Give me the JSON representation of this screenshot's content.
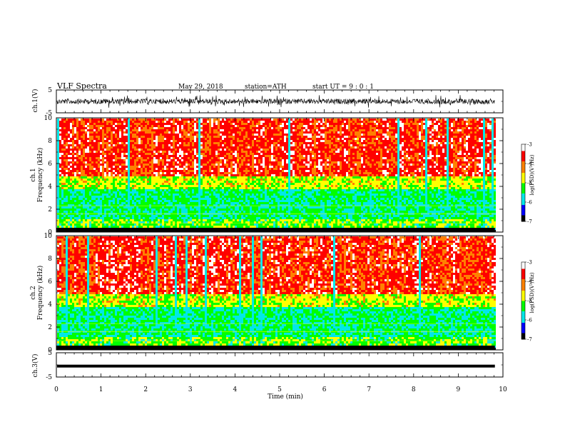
{
  "header": {
    "title": "VLF  Spectra",
    "date": "May 29, 2018",
    "station": "station=ATH",
    "start": "start  UT  =    9 : 0  : 1"
  },
  "chart_data": [
    {
      "type": "line",
      "panel": "ch1-waveform",
      "ylabel": "ch.1(V)",
      "ylim": [
        -5,
        5
      ],
      "yticks": [
        "5",
        "-5"
      ],
      "xlim": [
        0,
        10
      ]
    },
    {
      "type": "heatmap",
      "panel": "ch1-spectrogram",
      "ylabel_line1": "ch.1",
      "ylabel_line2": "Frequency (kHz)",
      "ylim": [
        0,
        10
      ],
      "yticks": [
        "10",
        "8",
        "6",
        "4",
        "2",
        "0"
      ],
      "xlim": [
        0,
        10
      ],
      "colorbar": {
        "label": "log(PSD)(V²/Hz)",
        "range": [
          -7,
          -3
        ],
        "ticks": [
          "-3",
          "-4",
          "-5",
          "-6",
          "-7"
        ]
      }
    },
    {
      "type": "heatmap",
      "panel": "ch2-spectrogram",
      "ylabel_line1": "ch.2",
      "ylabel_line2": "Frequency (kHz)",
      "ylim": [
        0,
        10
      ],
      "yticks": [
        "10",
        "8",
        "6",
        "4",
        "2",
        "0"
      ],
      "xlim": [
        0,
        10
      ],
      "colorbar": {
        "label": "log(PSD)(V²/Hz)",
        "range": [
          -7,
          -3
        ],
        "ticks": [
          "-3",
          "-4",
          "-5",
          "-6",
          "-7"
        ]
      }
    },
    {
      "type": "line",
      "panel": "ch3-waveform",
      "ylabel": "ch.3(V)",
      "ylim": [
        -5,
        5
      ],
      "yticks": [
        "5",
        "-5"
      ],
      "xlim": [
        0,
        10
      ],
      "xlabel": "Time  (min)",
      "xticks": [
        "0",
        "1",
        "2",
        "3",
        "4",
        "5",
        "6",
        "7",
        "8",
        "9",
        "10"
      ]
    }
  ],
  "colors": {
    "scale": [
      "#000000",
      "#0000ff",
      "#00e8e8",
      "#00ff00",
      "#ffff00",
      "#ff8000",
      "#ff0000",
      "#ffffff"
    ]
  }
}
